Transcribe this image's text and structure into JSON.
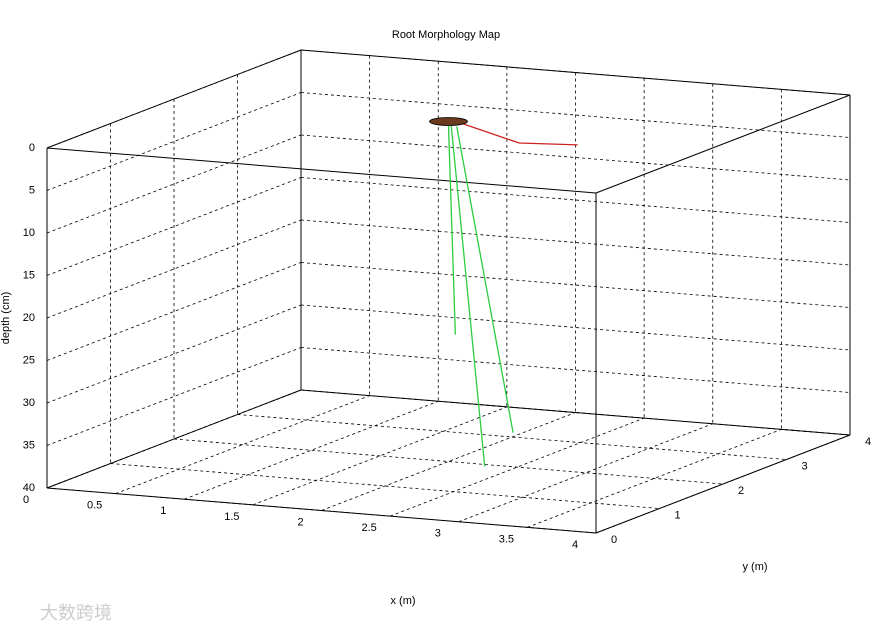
{
  "chart_data": {
    "type": "line3d",
    "title": "Root Morphology Map",
    "xlabel": "x (m)",
    "ylabel": "y (m)",
    "zlabel": "depth (cm)",
    "xlim": [
      0,
      4
    ],
    "ylim": [
      0,
      4
    ],
    "zlim": [
      0,
      40
    ],
    "zreversed": true,
    "grid": true,
    "xticks": [
      0,
      0.5,
      1,
      1.5,
      2,
      2.5,
      3,
      3.5,
      4
    ],
    "yticks": [
      0,
      1,
      2,
      3,
      4
    ],
    "zticks": [
      0,
      5,
      10,
      15,
      20,
      25,
      30,
      35,
      40
    ],
    "series": [
      {
        "color": "#2ecc40",
        "x": [
          2.0,
          2.05
        ],
        "y": [
          2.0,
          2.0
        ],
        "z": [
          0.5,
          25
        ]
      },
      {
        "color": "#2ecc40",
        "x": [
          2.02,
          2.56
        ],
        "y": [
          2.0,
          1.36
        ],
        "z": [
          0.5,
          38
        ]
      },
      {
        "color": "#2ecc40",
        "x": [
          2.06,
          2.6
        ],
        "y": [
          2.0,
          1.72
        ],
        "z": [
          0.5,
          35
        ]
      },
      {
        "color": "#cc2222",
        "x": [
          2.1,
          2.76,
          3.14
        ],
        "y": [
          1.98,
          1.47,
          1.57
        ],
        "z": [
          0,
          0,
          0
        ]
      }
    ],
    "markers": [
      {
        "x": 2.0,
        "y": 2.0,
        "z": 0,
        "color": "#6b3a1e"
      }
    ],
    "watermark": "大数跨境"
  }
}
